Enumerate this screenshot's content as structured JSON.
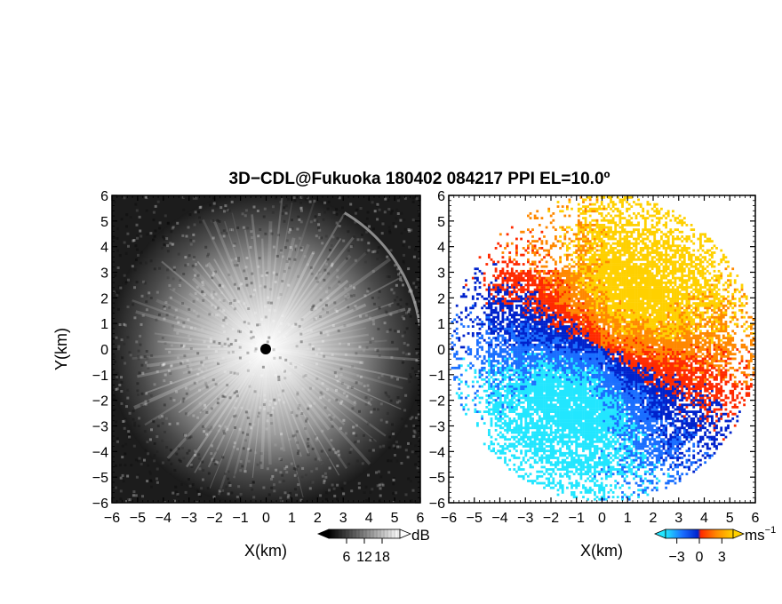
{
  "title": "3D−CDL@Fukuoka 180402 084217 PPI EL=10.0º",
  "chart_data": [
    {
      "type": "heatmap",
      "panel": "reflectivity",
      "xlabel": "X(km)",
      "ylabel": "Y(km)",
      "xlim": [
        -6,
        6
      ],
      "ylim": [
        -6,
        6
      ],
      "x_ticks": [
        -6,
        -5,
        -4,
        -3,
        -2,
        -1,
        0,
        1,
        2,
        3,
        4,
        5,
        6
      ],
      "y_ticks": [
        -6,
        -5,
        -4,
        -3,
        -2,
        -1,
        0,
        1,
        2,
        3,
        4,
        5,
        6
      ],
      "x_tick_labels": [
        "−6",
        "−5",
        "−4",
        "−3",
        "−2",
        "−1",
        "0",
        "1",
        "2",
        "3",
        "4",
        "5",
        "6"
      ],
      "y_tick_labels": [
        "6",
        "5",
        "4",
        "3",
        "2",
        "1",
        "0",
        "−1",
        "−2",
        "−3",
        "−4",
        "−5",
        "−6"
      ],
      "colorbar": {
        "unit": "dB",
        "ticks": [
          6,
          12,
          18
        ],
        "tick_labels": [
          "6",
          "12",
          "18"
        ],
        "range": [
          0,
          24
        ],
        "colors": [
          "#000000",
          "#ffffff"
        ]
      },
      "center_value": "no-data",
      "range_max_km": 6.1
    },
    {
      "type": "heatmap",
      "panel": "doppler-velocity",
      "xlabel": "X(km)",
      "xlim": [
        -6,
        6
      ],
      "ylim": [
        -6,
        6
      ],
      "x_ticks": [
        -6,
        -5,
        -4,
        -3,
        -2,
        -1,
        0,
        1,
        2,
        3,
        4,
        5,
        6
      ],
      "y_ticks": [
        -6,
        -5,
        -4,
        -3,
        -2,
        -1,
        0,
        1,
        2,
        3,
        4,
        5,
        6
      ],
      "x_tick_labels": [
        "−6",
        "−5",
        "−4",
        "−3",
        "−2",
        "−1",
        "0",
        "1",
        "2",
        "3",
        "4",
        "5",
        "6"
      ],
      "y_tick_labels": [
        "6",
        "5",
        "4",
        "3",
        "2",
        "1",
        "0",
        "−1",
        "−2",
        "−3",
        "−4",
        "−5",
        "−6"
      ],
      "colorbar": {
        "unit_base": "ms",
        "unit_exp": "−1",
        "ticks": [
          -3,
          0,
          3
        ],
        "tick_labels": [
          "−3",
          "0",
          "3"
        ],
        "range": [
          -4.5,
          4.5
        ],
        "colors": [
          "#22e6ff",
          "#1a6fff",
          "#0022cc",
          "#ff2a00",
          "#ff8800",
          "#ffd000"
        ]
      },
      "flow_direction_deg": 60
    }
  ]
}
